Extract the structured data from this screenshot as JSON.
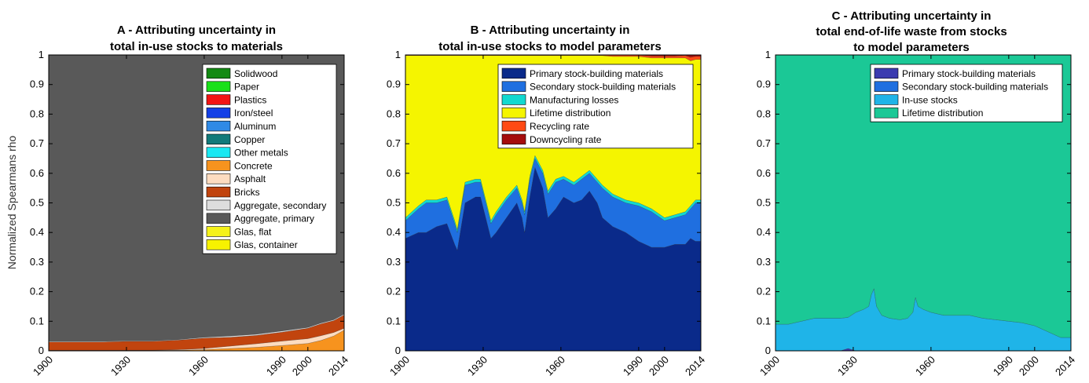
{
  "ylabel": "Normalized Spearmans rho",
  "chart_data": [
    {
      "type": "area",
      "title": "A - Attributing uncertainty in total in-use stocks to materials",
      "title_lines": [
        "A - Attributing uncertainty in",
        "total in-use stocks to materials"
      ],
      "xlabel": "",
      "ylabel": "Normalized Spearmans rho",
      "xlim": [
        1900,
        2014
      ],
      "ylim": [
        0,
        1
      ],
      "x_ticks": [
        1900,
        1930,
        1960,
        1990,
        2000,
        2014
      ],
      "y_ticks": [
        0,
        0.1,
        0.2,
        0.3,
        0.4,
        0.5,
        0.6,
        0.7,
        0.8,
        0.9,
        1
      ],
      "legend_placement": "top-right",
      "legend": [
        "Solidwood",
        "Paper",
        "Plastics",
        "Iron/steel",
        "Aluminum",
        "Copper",
        "Other metals",
        "Concrete",
        "Asphalt",
        "Bricks",
        "Aggregate, secondary",
        "Aggregate, primary",
        "Glas, flat",
        "Glas, container"
      ],
      "x": [
        1900,
        1910,
        1920,
        1930,
        1940,
        1950,
        1960,
        1970,
        1980,
        1990,
        2000,
        2005,
        2010,
        2014
      ],
      "series": [
        {
          "name": "Concrete",
          "color": "#f7931e",
          "values": [
            0.002,
            0.002,
            0.002,
            0.002,
            0.002,
            0.002,
            0.004,
            0.008,
            0.012,
            0.018,
            0.025,
            0.035,
            0.05,
            0.07
          ]
        },
        {
          "name": "Asphalt",
          "color": "#fddcc0",
          "values": [
            0,
            0,
            0,
            0,
            0,
            0.002,
            0.004,
            0.008,
            0.012,
            0.015,
            0.016,
            0.016,
            0.012,
            0.006
          ]
        },
        {
          "name": "Bricks",
          "color": "#c1440e",
          "values": [
            0.028,
            0.028,
            0.028,
            0.03,
            0.03,
            0.032,
            0.035,
            0.03,
            0.028,
            0.03,
            0.035,
            0.04,
            0.04,
            0.045
          ]
        },
        {
          "name": "Aggregate, secondary",
          "color": "#dddddd",
          "values": [
            0.002,
            0.002,
            0.002,
            0.002,
            0.002,
            0.002,
            0.003,
            0.004,
            0.004,
            0.004,
            0.003,
            0.003,
            0.003,
            0.003
          ]
        },
        {
          "name": "Aggregate, primary",
          "color": "#595959",
          "values": [
            0.968,
            0.968,
            0.968,
            0.966,
            0.966,
            0.962,
            0.954,
            0.95,
            0.944,
            0.933,
            0.921,
            0.906,
            0.895,
            0.876
          ]
        }
      ]
    },
    {
      "type": "area",
      "title": "B - Attributing uncertainty in total in-use stocks to model parameters",
      "title_lines": [
        "B - Attributing uncertainty in",
        "total in-use stocks to model parameters"
      ],
      "xlabel": "",
      "ylabel": "",
      "xlim": [
        1900,
        2014
      ],
      "ylim": [
        0,
        1
      ],
      "x_ticks": [
        1900,
        1930,
        1960,
        1990,
        2000,
        2014
      ],
      "y_ticks": [
        0,
        0.1,
        0.2,
        0.3,
        0.4,
        0.5,
        0.6,
        0.7,
        0.8,
        0.9,
        1
      ],
      "legend_placement": "top-right",
      "legend": [
        "Primary stock-building materials",
        "Secondary stock-building materials",
        "Manufacturing losses",
        "Lifetime distribution",
        "Recycling rate",
        "Downcycling rate"
      ],
      "x": [
        1900,
        1905,
        1908,
        1912,
        1916,
        1919,
        1920,
        1923,
        1927,
        1929,
        1933,
        1935,
        1939,
        1943,
        1945,
        1946,
        1948,
        1950,
        1953,
        1955,
        1958,
        1961,
        1965,
        1968,
        1971,
        1974,
        1976,
        1980,
        1985,
        1990,
        1995,
        2000,
        2004,
        2008,
        2010,
        2012,
        2014
      ],
      "series": [
        {
          "name": "Primary stock-building materials",
          "color": "#0a2a8a",
          "values": [
            0.38,
            0.4,
            0.4,
            0.42,
            0.43,
            0.36,
            0.34,
            0.5,
            0.52,
            0.52,
            0.38,
            0.4,
            0.45,
            0.5,
            0.45,
            0.4,
            0.52,
            0.62,
            0.55,
            0.45,
            0.48,
            0.52,
            0.5,
            0.51,
            0.54,
            0.5,
            0.45,
            0.42,
            0.4,
            0.37,
            0.35,
            0.35,
            0.36,
            0.36,
            0.38,
            0.37,
            0.37
          ]
        },
        {
          "name": "Secondary stock-building materials",
          "color": "#1f6fe0",
          "values": [
            0.06,
            0.08,
            0.1,
            0.08,
            0.08,
            0.07,
            0.06,
            0.06,
            0.05,
            0.05,
            0.05,
            0.06,
            0.06,
            0.05,
            0.05,
            0.06,
            0.06,
            0.03,
            0.05,
            0.08,
            0.09,
            0.06,
            0.06,
            0.07,
            0.06,
            0.07,
            0.1,
            0.1,
            0.1,
            0.12,
            0.12,
            0.09,
            0.09,
            0.1,
            0.1,
            0.13,
            0.13
          ]
        },
        {
          "name": "Manufacturing losses",
          "color": "#12d9d0",
          "values": [
            0.01,
            0.01,
            0.01,
            0.01,
            0.01,
            0.01,
            0.01,
            0.01,
            0.01,
            0.01,
            0.01,
            0.01,
            0.01,
            0.01,
            0.01,
            0.01,
            0.01,
            0.01,
            0.01,
            0.01,
            0.01,
            0.01,
            0.01,
            0.01,
            0.01,
            0.01,
            0.01,
            0.01,
            0.01,
            0.01,
            0.01,
            0.01,
            0.01,
            0.01,
            0.01,
            0.01,
            0.01
          ]
        },
        {
          "name": "Lifetime distribution",
          "color": "#f5f500",
          "values": [
            0.548,
            0.508,
            0.488,
            0.488,
            0.478,
            0.558,
            0.588,
            0.428,
            0.418,
            0.418,
            0.558,
            0.528,
            0.478,
            0.438,
            0.488,
            0.528,
            0.408,
            0.338,
            0.388,
            0.458,
            0.418,
            0.408,
            0.428,
            0.408,
            0.388,
            0.418,
            0.438,
            0.465,
            0.485,
            0.495,
            0.51,
            0.54,
            0.53,
            0.52,
            0.49,
            0.475,
            0.475
          ]
        },
        {
          "name": "Recycling rate",
          "color": "#ff4a14",
          "values": [
            0.001,
            0.001,
            0.001,
            0.001,
            0.001,
            0.001,
            0.001,
            0.001,
            0.001,
            0.001,
            0.001,
            0.001,
            0.001,
            0.001,
            0.001,
            0.001,
            0.001,
            0.001,
            0.001,
            0.001,
            0.001,
            0.001,
            0.001,
            0.001,
            0.001,
            0.001,
            0.001,
            0.004,
            0.004,
            0.004,
            0.006,
            0.006,
            0.006,
            0.008,
            0.012,
            0.01,
            0.01
          ]
        },
        {
          "name": "Downcycling rate",
          "color": "#a50d0d",
          "values": [
            0.001,
            0.001,
            0.001,
            0.001,
            0.001,
            0.001,
            0.001,
            0.001,
            0.001,
            0.001,
            0.001,
            0.001,
            0.001,
            0.001,
            0.001,
            0.001,
            0.001,
            0.001,
            0.001,
            0.001,
            0.001,
            0.001,
            0.001,
            0.001,
            0.001,
            0.001,
            0.001,
            0.001,
            0.001,
            0.001,
            0.004,
            0.004,
            0.004,
            0.002,
            0.008,
            0.005,
            0.005
          ]
        }
      ]
    },
    {
      "type": "area",
      "title": "C - Attributing uncertainty in total end-of-life waste from stocks to model parameters",
      "title_lines": [
        "C - Attributing uncertainty in",
        "total end-of-life waste from stocks",
        "to model parameters"
      ],
      "xlabel": "",
      "ylabel": "",
      "xlim": [
        1900,
        2014
      ],
      "ylim": [
        0,
        1
      ],
      "x_ticks": [
        1900,
        1930,
        1960,
        1990,
        2000,
        2014
      ],
      "y_ticks": [
        0,
        0.1,
        0.2,
        0.3,
        0.4,
        0.5,
        0.6,
        0.7,
        0.8,
        0.9,
        1
      ],
      "legend_placement": "top-right",
      "legend": [
        "Primary stock-building materials",
        "Secondary stock-building materials",
        "In-use stocks",
        "Lifetime distribution"
      ],
      "x": [
        1900,
        1905,
        1910,
        1915,
        1920,
        1925,
        1928,
        1931,
        1934,
        1936,
        1937,
        1938,
        1939,
        1941,
        1944,
        1948,
        1951,
        1953,
        1954,
        1955,
        1957,
        1960,
        1965,
        1970,
        1975,
        1980,
        1985,
        1990,
        1995,
        2000,
        2005,
        2010,
        2014
      ],
      "series": [
        {
          "name": "Primary stock-building materials",
          "color": "#3b3bb0",
          "values": [
            0,
            0,
            0,
            0,
            0,
            0,
            0.008,
            0,
            0,
            0,
            0,
            0,
            0,
            0,
            0,
            0,
            0,
            0,
            0,
            0,
            0,
            0,
            0,
            0,
            0,
            0,
            0,
            0,
            0,
            0,
            0,
            0,
            0
          ]
        },
        {
          "name": "In-use stocks",
          "color": "#1fb4e8",
          "values": [
            0.09,
            0.09,
            0.1,
            0.11,
            0.11,
            0.11,
            0.105,
            0.13,
            0.14,
            0.15,
            0.19,
            0.21,
            0.15,
            0.12,
            0.11,
            0.105,
            0.11,
            0.13,
            0.18,
            0.15,
            0.14,
            0.13,
            0.12,
            0.12,
            0.12,
            0.11,
            0.105,
            0.1,
            0.095,
            0.085,
            0.065,
            0.045,
            0.045
          ]
        },
        {
          "name": "Lifetime distribution",
          "color": "#1bc896",
          "values": [
            0.91,
            0.91,
            0.9,
            0.89,
            0.89,
            0.89,
            0.887,
            0.87,
            0.86,
            0.85,
            0.81,
            0.79,
            0.85,
            0.88,
            0.89,
            0.895,
            0.89,
            0.87,
            0.82,
            0.85,
            0.86,
            0.87,
            0.88,
            0.88,
            0.88,
            0.89,
            0.895,
            0.9,
            0.905,
            0.915,
            0.935,
            0.955,
            0.955
          ]
        }
      ]
    }
  ],
  "legends": [
    {
      "items": [
        {
          "label": "Solidwood",
          "color": "#138a13"
        },
        {
          "label": "Paper",
          "color": "#1ae01a"
        },
        {
          "label": "Plastics",
          "color": "#f21414"
        },
        {
          "label": "Iron/steel",
          "color": "#1440e6"
        },
        {
          "label": "Aluminum",
          "color": "#2f8ae6"
        },
        {
          "label": "Copper",
          "color": "#127a7a"
        },
        {
          "label": "Other metals",
          "color": "#1ae8f2"
        },
        {
          "label": "Concrete",
          "color": "#f7931e"
        },
        {
          "label": "Asphalt",
          "color": "#fddcc0"
        },
        {
          "label": "Bricks",
          "color": "#c1440e"
        },
        {
          "label": "Aggregate, secondary",
          "color": "#dddddd"
        },
        {
          "label": "Aggregate, primary",
          "color": "#595959"
        },
        {
          "label": "Glas, flat",
          "color": "#f5f21a"
        },
        {
          "label": "Glas, container",
          "color": "#f7f200"
        }
      ]
    },
    {
      "items": [
        {
          "label": "Primary stock-building materials",
          "color": "#0a2a8a"
        },
        {
          "label": "Secondary stock-building materials",
          "color": "#1f6fe0"
        },
        {
          "label": "Manufacturing losses",
          "color": "#12d9d0"
        },
        {
          "label": "Lifetime distribution",
          "color": "#f5f500"
        },
        {
          "label": "Recycling rate",
          "color": "#ff4a14"
        },
        {
          "label": "Downcycling rate",
          "color": "#a50d0d"
        }
      ]
    },
    {
      "items": [
        {
          "label": "Primary stock-building materials",
          "color": "#3b3bb0"
        },
        {
          "label": "Secondary stock-building materials",
          "color": "#1f6fe0"
        },
        {
          "label": "In-use stocks",
          "color": "#1fb4e8"
        },
        {
          "label": "Lifetime distribution",
          "color": "#1bc896"
        }
      ]
    }
  ]
}
